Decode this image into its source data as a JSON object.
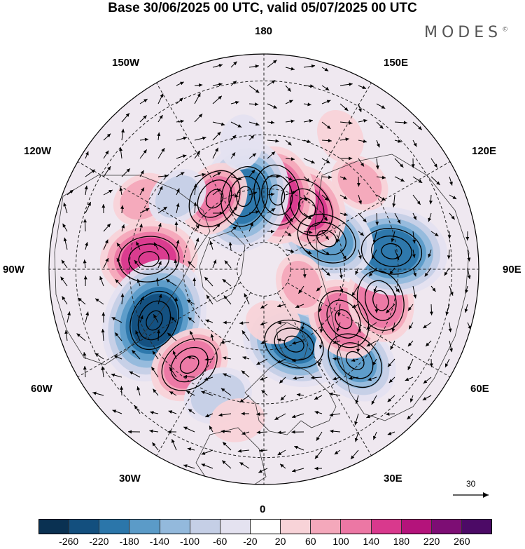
{
  "title": "Base 30/06/2025 00 UTC, valid 05/07/2025 00 UTC",
  "brand": "MODES",
  "brand_mark": "©",
  "longitude_labels": {
    "north": "180",
    "south": "0",
    "west": "90W",
    "east": "90E",
    "nw1": "150W",
    "nw2": "120W",
    "ne1": "150E",
    "ne2": "120E",
    "sw1": "60W",
    "sw2": "30W",
    "se1": "60E",
    "se2": "30E"
  },
  "wind_scale": {
    "value": "30"
  },
  "colorbar": {
    "ticks": [
      "-260",
      "-220",
      "-180",
      "-140",
      "-100",
      "-60",
      "-20",
      "20",
      "60",
      "100",
      "140",
      "180",
      "220",
      "260"
    ],
    "colors": [
      "#0a3152",
      "#134f7e",
      "#2b76aa",
      "#5b9bc8",
      "#93b9dc",
      "#c5cfe6",
      "#e4e2f0",
      "#ffffff",
      "#f8d3d8",
      "#f4a8bb",
      "#ec77a4",
      "#d9398d",
      "#b4137b",
      "#7d0d74",
      "#4c0a66"
    ]
  },
  "anomalies": [
    {
      "lon": 22,
      "lat": 60,
      "v": -180
    },
    {
      "lon": 45,
      "lat": 42,
      "v": -140
    },
    {
      "lon": 58,
      "lat": 55,
      "v": 120
    },
    {
      "lon": 75,
      "lat": 45,
      "v": 120
    },
    {
      "lon": 98,
      "lat": 42,
      "v": -200
    },
    {
      "lon": 116,
      "lat": 64,
      "v": -160
    },
    {
      "lon": 145,
      "lat": 62,
      "v": 140
    },
    {
      "lon": 132,
      "lat": 42,
      "v": 60
    },
    {
      "lon": 170,
      "lat": 62,
      "v": 160
    },
    {
      "lon": -165,
      "lat": 62,
      "v": -200
    },
    {
      "lon": -145,
      "lat": 58,
      "v": 100
    },
    {
      "lon": -95,
      "lat": 47,
      "v": 160
    },
    {
      "lon": -120,
      "lat": 38,
      "v": 60
    },
    {
      "lon": -65,
      "lat": 45,
      "v": -240
    },
    {
      "lon": -38,
      "lat": 45,
      "v": 120
    },
    {
      "lon": -20,
      "lat": 40,
      "v": -80
    },
    {
      "lon": -10,
      "lat": 33,
      "v": 40
    },
    {
      "lon": 68,
      "lat": 75,
      "v": 60
    },
    {
      "lon": 10,
      "lat": 70,
      "v": 40
    },
    {
      "lon": -130,
      "lat": 48,
      "v": -60
    },
    {
      "lon": 150,
      "lat": 33,
      "v": 40
    },
    {
      "lon": -170,
      "lat": 42,
      "v": -40
    }
  ]
}
